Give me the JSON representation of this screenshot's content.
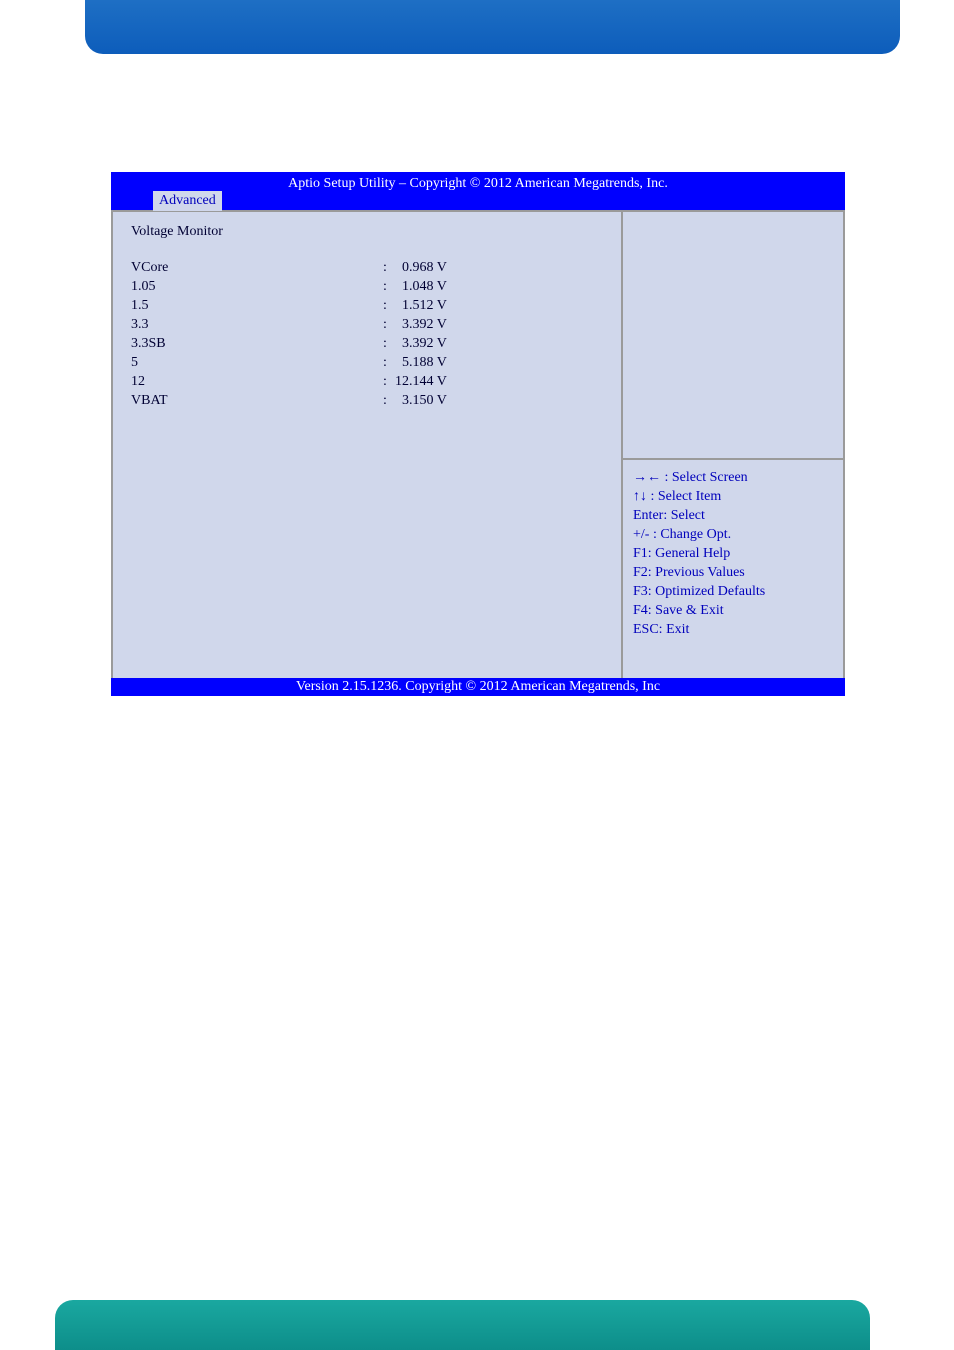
{
  "header": {
    "title": "Aptio Setup Utility  –  Copyright © 2012 American Megatrends, Inc.",
    "tab": "Advanced"
  },
  "main": {
    "section_title": "Voltage Monitor",
    "readings": [
      {
        "label": "VCore",
        "value": "  0.968 V"
      },
      {
        "label": "1.05",
        "value": "  1.048 V"
      },
      {
        "label": "1.5",
        "value": "  1.512 V"
      },
      {
        "label": "3.3",
        "value": "  3.392 V"
      },
      {
        "label": "3.3SB",
        "value": "  3.392 V"
      },
      {
        "label": "5",
        "value": "  5.188 V"
      },
      {
        "label": "12",
        "value": "12.144 V"
      },
      {
        "label": "VBAT",
        "value": "  3.150 V"
      }
    ]
  },
  "help": {
    "lines": [
      "→← : Select Screen",
      "↑↓ : Select Item",
      "Enter: Select",
      "+/- : Change Opt.",
      "F1: General Help",
      "F2: Previous Values",
      "F3: Optimized Defaults",
      "F4: Save & Exit",
      "ESC: Exit"
    ]
  },
  "footer": {
    "text": "Version 2.15.1236. Copyright © 2012 American Megatrends, Inc"
  },
  "colors": {
    "bios_bg": "#0000ff",
    "panel_bg": "#d0d7eb",
    "help_text": "#0000bb",
    "top_banner": "#1e6fc4",
    "bottom_banner": "#1aa8a0"
  }
}
